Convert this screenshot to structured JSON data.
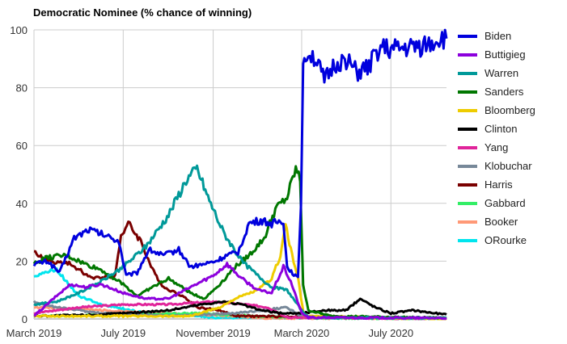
{
  "chart_data": {
    "type": "line",
    "title": "Democratic Nominee (% chance of winning)",
    "xlabel": "",
    "ylabel": "",
    "ylim": [
      0,
      100
    ],
    "yticks": [
      0,
      20,
      40,
      60,
      80,
      100
    ],
    "xlim": [
      "2019-03-01",
      "2020-09-15"
    ],
    "xticks": [
      {
        "label": "March 2019",
        "date": "2019-03-01"
      },
      {
        "label": "July 2019",
        "date": "2019-07-01"
      },
      {
        "label": "November 2019",
        "date": "2019-11-01"
      },
      {
        "label": "March 2020",
        "date": "2020-03-01"
      },
      {
        "label": "July 2020",
        "date": "2020-07-01"
      }
    ],
    "grid": true,
    "legend_position": "right",
    "series": [
      {
        "name": "Biden",
        "color": "#0000dd",
        "points": [
          [
            "2019-03-01",
            19
          ],
          [
            "2019-03-20",
            20
          ],
          [
            "2019-04-05",
            16
          ],
          [
            "2019-04-25",
            28
          ],
          [
            "2019-05-15",
            31
          ],
          [
            "2019-06-05",
            29
          ],
          [
            "2019-06-25",
            27
          ],
          [
            "2019-07-05",
            15
          ],
          [
            "2019-07-20",
            16
          ],
          [
            "2019-08-05",
            24
          ],
          [
            "2019-08-25",
            22
          ],
          [
            "2019-09-15",
            24
          ],
          [
            "2019-10-01",
            18
          ],
          [
            "2019-10-20",
            19
          ],
          [
            "2019-11-05",
            20
          ],
          [
            "2019-11-20",
            22
          ],
          [
            "2019-12-05",
            23
          ],
          [
            "2019-12-20",
            33
          ],
          [
            "2020-01-05",
            34
          ],
          [
            "2020-01-20",
            33
          ],
          [
            "2020-02-05",
            34
          ],
          [
            "2020-02-10",
            18
          ],
          [
            "2020-02-25",
            14
          ],
          [
            "2020-02-29",
            40
          ],
          [
            "2020-03-03",
            88
          ],
          [
            "2020-03-08",
            93
          ],
          [
            "2020-03-20",
            90
          ],
          [
            "2020-04-01",
            82
          ],
          [
            "2020-04-15",
            88
          ],
          [
            "2020-05-01",
            90
          ],
          [
            "2020-05-15",
            85
          ],
          [
            "2020-06-01",
            87
          ],
          [
            "2020-06-15",
            94
          ],
          [
            "2020-07-01",
            93
          ],
          [
            "2020-08-01",
            94
          ],
          [
            "2020-08-20",
            95
          ],
          [
            "2020-09-05",
            97
          ],
          [
            "2020-09-15",
            97
          ]
        ]
      },
      {
        "name": "Buttigieg",
        "color": "#8c00dd",
        "points": [
          [
            "2019-03-01",
            1
          ],
          [
            "2019-04-01",
            8
          ],
          [
            "2019-04-20",
            12
          ],
          [
            "2019-05-10",
            11
          ],
          [
            "2019-06-01",
            12
          ],
          [
            "2019-07-01",
            9
          ],
          [
            "2019-08-01",
            7
          ],
          [
            "2019-09-01",
            7
          ],
          [
            "2019-10-01",
            11
          ],
          [
            "2019-11-01",
            15
          ],
          [
            "2019-11-20",
            19
          ],
          [
            "2019-12-10",
            14
          ],
          [
            "2020-01-01",
            10
          ],
          [
            "2020-01-20",
            9
          ],
          [
            "2020-02-05",
            18
          ],
          [
            "2020-02-15",
            13
          ],
          [
            "2020-03-01",
            2
          ],
          [
            "2020-03-10",
            0.5
          ],
          [
            "2020-09-15",
            0.3
          ]
        ]
      },
      {
        "name": "Warren",
        "color": "#009999",
        "points": [
          [
            "2019-03-01",
            5
          ],
          [
            "2019-04-01",
            6
          ],
          [
            "2019-05-01",
            9
          ],
          [
            "2019-06-01",
            13
          ],
          [
            "2019-07-01",
            18
          ],
          [
            "2019-08-01",
            25
          ],
          [
            "2019-09-01",
            36
          ],
          [
            "2019-09-25",
            48
          ],
          [
            "2019-10-10",
            52
          ],
          [
            "2019-10-25",
            42
          ],
          [
            "2019-11-15",
            30
          ],
          [
            "2019-12-10",
            20
          ],
          [
            "2020-01-01",
            15
          ],
          [
            "2020-01-20",
            11
          ],
          [
            "2020-02-10",
            10
          ],
          [
            "2020-03-01",
            3
          ],
          [
            "2020-03-10",
            0.5
          ],
          [
            "2020-09-15",
            0.3
          ]
        ]
      },
      {
        "name": "Sanders",
        "color": "#007700",
        "points": [
          [
            "2019-03-01",
            19
          ],
          [
            "2019-03-15",
            21
          ],
          [
            "2019-04-15",
            22
          ],
          [
            "2019-05-10",
            19
          ],
          [
            "2019-06-01",
            17
          ],
          [
            "2019-07-01",
            12
          ],
          [
            "2019-07-20",
            8
          ],
          [
            "2019-08-10",
            11
          ],
          [
            "2019-09-01",
            14
          ],
          [
            "2019-10-01",
            9
          ],
          [
            "2019-10-20",
            7
          ],
          [
            "2019-11-10",
            12
          ],
          [
            "2019-12-01",
            18
          ],
          [
            "2019-12-20",
            22
          ],
          [
            "2020-01-10",
            28
          ],
          [
            "2020-01-25",
            38
          ],
          [
            "2020-02-10",
            42
          ],
          [
            "2020-02-22",
            52
          ],
          [
            "2020-02-28",
            48
          ],
          [
            "2020-03-03",
            12
          ],
          [
            "2020-03-10",
            3
          ],
          [
            "2020-04-10",
            1
          ],
          [
            "2020-09-15",
            0.3
          ]
        ]
      },
      {
        "name": "Bloomberg",
        "color": "#eecc00",
        "points": [
          [
            "2019-03-01",
            1
          ],
          [
            "2019-10-01",
            1
          ],
          [
            "2019-11-10",
            4
          ],
          [
            "2019-12-01",
            7
          ],
          [
            "2020-01-01",
            10
          ],
          [
            "2020-01-20",
            14
          ],
          [
            "2020-02-01",
            22
          ],
          [
            "2020-02-08",
            33
          ],
          [
            "2020-02-15",
            24
          ],
          [
            "2020-02-25",
            14
          ],
          [
            "2020-03-04",
            1
          ],
          [
            "2020-09-15",
            0
          ]
        ]
      },
      {
        "name": "Clinton",
        "color": "#000000",
        "points": [
          [
            "2019-03-01",
            1
          ],
          [
            "2019-06-01",
            1.5
          ],
          [
            "2019-09-01",
            3
          ],
          [
            "2019-10-15",
            5
          ],
          [
            "2019-11-15",
            6
          ],
          [
            "2019-12-10",
            5
          ],
          [
            "2020-01-05",
            3
          ],
          [
            "2020-02-01",
            2
          ],
          [
            "2020-03-01",
            2
          ],
          [
            "2020-04-01",
            3
          ],
          [
            "2020-05-01",
            3
          ],
          [
            "2020-05-20",
            7
          ],
          [
            "2020-06-10",
            4
          ],
          [
            "2020-07-01",
            2
          ],
          [
            "2020-08-01",
            3
          ],
          [
            "2020-09-15",
            1.5
          ]
        ]
      },
      {
        "name": "Yang",
        "color": "#e0249a",
        "points": [
          [
            "2019-03-01",
            2
          ],
          [
            "2019-05-01",
            4
          ],
          [
            "2019-07-01",
            5
          ],
          [
            "2019-09-01",
            5
          ],
          [
            "2019-11-01",
            6
          ],
          [
            "2019-12-15",
            5
          ],
          [
            "2020-01-15",
            4
          ],
          [
            "2020-02-12",
            0.5
          ],
          [
            "2020-09-15",
            0.2
          ]
        ]
      },
      {
        "name": "Klobuchar",
        "color": "#778899",
        "points": [
          [
            "2019-03-01",
            6
          ],
          [
            "2019-04-01",
            4
          ],
          [
            "2019-06-01",
            2
          ],
          [
            "2019-09-01",
            1
          ],
          [
            "2019-12-01",
            2
          ],
          [
            "2020-02-10",
            4
          ],
          [
            "2020-03-03",
            0.5
          ],
          [
            "2020-09-15",
            0.2
          ]
        ]
      },
      {
        "name": "Harris",
        "color": "#7a0000",
        "points": [
          [
            "2019-03-01",
            23
          ],
          [
            "2019-03-20",
            20
          ],
          [
            "2019-04-20",
            19
          ],
          [
            "2019-05-20",
            14
          ],
          [
            "2019-06-20",
            15
          ],
          [
            "2019-06-28",
            29
          ],
          [
            "2019-07-08",
            33
          ],
          [
            "2019-07-25",
            27
          ],
          [
            "2019-08-10",
            17
          ],
          [
            "2019-08-25",
            11
          ],
          [
            "2019-09-20",
            8
          ],
          [
            "2019-10-10",
            4
          ],
          [
            "2019-11-10",
            3
          ],
          [
            "2019-12-03",
            1
          ],
          [
            "2020-09-15",
            0.3
          ]
        ]
      },
      {
        "name": "Gabbard",
        "color": "#33ee66",
        "points": [
          [
            "2019-03-01",
            1
          ],
          [
            "2019-07-01",
            1.5
          ],
          [
            "2019-10-01",
            2
          ],
          [
            "2020-01-01",
            1
          ],
          [
            "2020-03-20",
            0.3
          ],
          [
            "2020-09-15",
            0.2
          ]
        ]
      },
      {
        "name": "Booker",
        "color": "#ff9977",
        "points": [
          [
            "2019-03-01",
            4
          ],
          [
            "2019-06-01",
            3
          ],
          [
            "2019-09-01",
            2
          ],
          [
            "2019-12-01",
            1
          ],
          [
            "2020-01-13",
            0.3
          ],
          [
            "2020-09-15",
            0.2
          ]
        ]
      },
      {
        "name": "ORourke",
        "color": "#00e5ee",
        "points": [
          [
            "2019-03-01",
            15
          ],
          [
            "2019-04-01",
            17
          ],
          [
            "2019-05-01",
            8
          ],
          [
            "2019-06-01",
            5
          ],
          [
            "2019-08-01",
            2
          ],
          [
            "2019-11-01",
            0.5
          ],
          [
            "2020-09-15",
            0.3
          ]
        ]
      }
    ]
  }
}
